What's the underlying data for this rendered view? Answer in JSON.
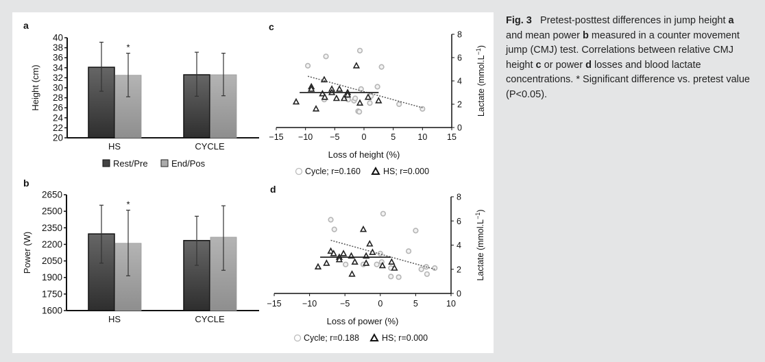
{
  "caption": {
    "fig_label": "Fig. 3",
    "parts": [
      {
        "t": "Pretest-posttest differences in jump height ",
        "b": false
      },
      {
        "t": "a",
        "b": true
      },
      {
        "t": " and mean power ",
        "b": false
      },
      {
        "t": "b",
        "b": true
      },
      {
        "t": " measured in a counter movement jump (CMJ) test. Correlations between relative CMJ height ",
        "b": false
      },
      {
        "t": "c",
        "b": true
      },
      {
        "t": " or power ",
        "b": false
      },
      {
        "t": "d",
        "b": true
      },
      {
        "t": " losses and blood lactate concentrations.  * Significant difference vs. pretest value (P<0.05).",
        "b": false
      }
    ]
  },
  "colors": {
    "pre": "#4a4a4a",
    "post": "#adadad",
    "cycle_marker": "#b5b5b5",
    "hs_marker": "#222222"
  },
  "chart_data": [
    {
      "panel": "a",
      "type": "bar",
      "categories": [
        "HS",
        "CYCLE"
      ],
      "ylabel": "Height (cm)",
      "ylim": [
        20,
        40
      ],
      "yticks": [
        "20",
        "22",
        "24",
        "26",
        "28",
        "30",
        "32",
        "34",
        "36",
        "38",
        "40"
      ],
      "series": [
        {
          "name": "Rest/Pre",
          "values": [
            34.1,
            32.6
          ],
          "err_low": [
            29.3,
            28.3
          ],
          "err_high": [
            39.1,
            37.1
          ]
        },
        {
          "name": "End/Pos",
          "values": [
            32.5,
            32.6
          ],
          "err_low": [
            28.2,
            28.4
          ],
          "err_high": [
            36.9,
            36.9
          ]
        }
      ],
      "significance": [
        {
          "category": "HS",
          "series": "End/Pos",
          "mark": "*"
        }
      ],
      "legend": "bottom"
    },
    {
      "panel": "b",
      "type": "bar",
      "categories": [
        "HS",
        "CYCLE"
      ],
      "ylabel": "Power (W)",
      "ylim": [
        1600,
        2650
      ],
      "yticks": [
        "1600",
        "1750",
        "1900",
        "2050",
        "2200",
        "2350",
        "2500",
        "2650"
      ],
      "series": [
        {
          "values": [
            2295,
            2235
          ],
          "err_low": [
            2030,
            2010
          ],
          "err_high": [
            2555,
            2455
          ]
        },
        {
          "values": [
            2210,
            2265
          ],
          "err_low": [
            1915,
            1965
          ],
          "err_high": [
            2510,
            2550
          ]
        }
      ],
      "significance": [
        {
          "category": "HS",
          "series": 1,
          "mark": "*"
        }
      ]
    },
    {
      "panel": "c",
      "type": "scatter",
      "xlabel": "Loss of height (%)",
      "ylabel": "Lactate (mmol.L",
      "ylabel_sup": "−1",
      "ylabel_end": ")",
      "xlim": [
        -15,
        15
      ],
      "ylim": [
        0,
        8
      ],
      "xticks": [
        "−15",
        "−10",
        "−5",
        "0",
        "5",
        "10",
        "15"
      ],
      "yticks": [
        "0",
        "2",
        "4",
        "6",
        "8"
      ],
      "y_axis_side": "right",
      "series": [
        {
          "name": "Cycle; r=0.160",
          "marker": "circle",
          "points": [
            [
              -9.6,
              5.3
            ],
            [
              -6.5,
              6.1
            ],
            [
              -0.7,
              6.6
            ],
            [
              3,
              5.2
            ],
            [
              2.3,
              3.5
            ],
            [
              -0.5,
              3.3
            ],
            [
              -6.8,
              2.4
            ],
            [
              -1.7,
              2.3
            ],
            [
              -1.5,
              2.5
            ],
            [
              -1.0,
              1.4
            ],
            [
              -0.8,
              1.35
            ],
            [
              1,
              2.1
            ],
            [
              1.2,
              2.7
            ],
            [
              6,
              2.0
            ],
            [
              10,
              1.6
            ],
            [
              -2.7,
              2.4
            ]
          ],
          "trend": [
            [
              -9.6,
              4.4
            ],
            [
              10,
              1.7
            ]
          ],
          "trend_style": "dotted"
        },
        {
          "name": "HS; r=0.000",
          "marker": "triangle",
          "points": [
            [
              -11.6,
              2.2
            ],
            [
              -9,
              3.5
            ],
            [
              -9,
              3.3
            ],
            [
              -6.8,
              4.1
            ],
            [
              -7.1,
              2.9
            ],
            [
              -6.7,
              2.6
            ],
            [
              -8.2,
              1.6
            ],
            [
              -5.5,
              3.3
            ],
            [
              -5.5,
              3.0
            ],
            [
              -4.7,
              2.5
            ],
            [
              -4.2,
              3.3
            ],
            [
              -3.4,
              2.5
            ],
            [
              -2.8,
              3.0
            ],
            [
              -2.8,
              2.8
            ],
            [
              -1.3,
              5.3
            ],
            [
              -0.7,
              2.1
            ],
            [
              0.7,
              2.6
            ],
            [
              2.5,
              2.3
            ]
          ],
          "trend": [
            [
              -11,
              3.0
            ],
            [
              2.5,
              3.0
            ]
          ],
          "trend_style": "solid"
        }
      ],
      "legend": "bottom"
    },
    {
      "panel": "d",
      "type": "scatter",
      "xlabel": "Loss of power (%)",
      "ylabel": "Lactate (mmol.L",
      "ylabel_sup": "−1",
      "ylabel_end": ")",
      "xlim": [
        -15,
        10
      ],
      "ylim": [
        0,
        8
      ],
      "xticks": [
        "−15",
        "−10",
        "−5",
        "0",
        "5",
        "10"
      ],
      "yticks": [
        "0",
        "2",
        "4",
        "6",
        "8"
      ],
      "y_axis_side": "right",
      "series": [
        {
          "name": "Cycle; r=0.188",
          "marker": "circle",
          "points": [
            [
              -7,
              6.1
            ],
            [
              -6.5,
              5.3
            ],
            [
              0.4,
              6.6
            ],
            [
              5,
              5.2
            ],
            [
              4,
              3.5
            ],
            [
              0,
              3.3
            ],
            [
              -4.9,
              2.4
            ],
            [
              -2.4,
              2.4
            ],
            [
              -0.5,
              2.4
            ],
            [
              0.2,
              2.6
            ],
            [
              1.5,
              2.1
            ],
            [
              1.5,
              1.4
            ],
            [
              2.6,
              1.35
            ],
            [
              5.8,
              2.0
            ],
            [
              6.5,
              2.2
            ],
            [
              6.6,
              1.6
            ],
            [
              7.7,
              2.1
            ],
            [
              -5.8,
              2.9
            ]
          ],
          "trend": [
            [
              -7,
              4.4
            ],
            [
              7.7,
              2.0
            ]
          ],
          "trend_style": "dotted"
        },
        {
          "name": "HS; r=0.000",
          "marker": "triangle",
          "points": [
            [
              -8.8,
              2.2
            ],
            [
              -7.6,
              2.5
            ],
            [
              -7,
              3.5
            ],
            [
              -6.6,
              3.3
            ],
            [
              -5.8,
              3.0
            ],
            [
              -5.8,
              2.8
            ],
            [
              -5.2,
              3.3
            ],
            [
              -4.1,
              3.1
            ],
            [
              -4,
              1.6
            ],
            [
              -3.6,
              2.6
            ],
            [
              -2.4,
              5.3
            ],
            [
              -2,
              3.1
            ],
            [
              -2,
              2.5
            ],
            [
              -1.5,
              4.1
            ],
            [
              -1.1,
              3.4
            ],
            [
              0.3,
              2.3
            ],
            [
              1.6,
              2.6
            ],
            [
              2,
              2.1
            ]
          ],
          "trend": [
            [
              -8.5,
              3.0
            ],
            [
              1.5,
              3.0
            ]
          ],
          "trend_style": "solid"
        }
      ],
      "legend": "bottom"
    }
  ]
}
